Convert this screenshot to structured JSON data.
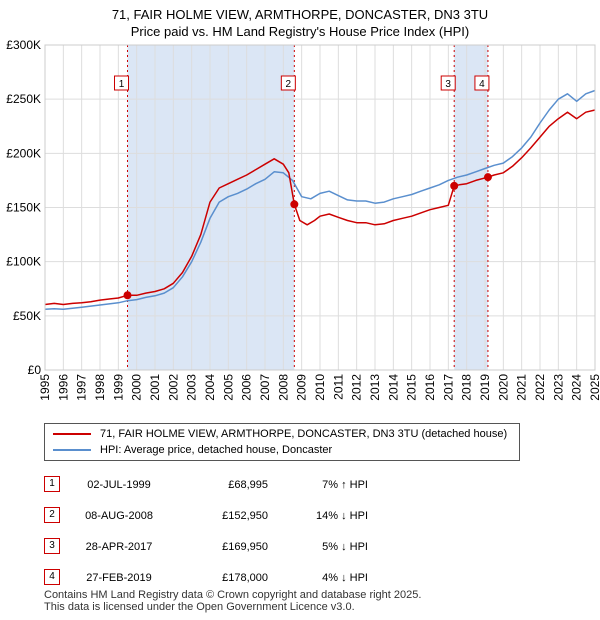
{
  "title_line1": "71, FAIR HOLME VIEW, ARMTHORPE, DONCASTER, DN3 3TU",
  "title_line2": "Price paid vs. HM Land Registry's House Price Index (HPI)",
  "colors": {
    "property": "#cc0000",
    "hpi": "#5a8fce",
    "highlight": "#dbe6f5",
    "grid": "#dddddd",
    "marker": "#cc0000"
  },
  "chart_data": {
    "type": "line",
    "title": "Price paid vs. HM Land Registry's House Price Index (HPI)",
    "xlabel": "",
    "ylabel": "",
    "xlim": [
      1995,
      2025
    ],
    "ylim": [
      0,
      300000
    ],
    "x_ticks": [
      1995,
      1996,
      1997,
      1998,
      1999,
      2000,
      2001,
      2002,
      2003,
      2004,
      2005,
      2006,
      2007,
      2008,
      2009,
      2010,
      2011,
      2012,
      2013,
      2014,
      2015,
      2016,
      2017,
      2018,
      2019,
      2020,
      2021,
      2022,
      2023,
      2024,
      2025
    ],
    "y_ticks": [
      0,
      50000,
      100000,
      150000,
      200000,
      250000,
      300000
    ],
    "y_tick_labels": [
      "£0",
      "£50K",
      "£100K",
      "£150K",
      "£200K",
      "£250K",
      "£300K"
    ],
    "series": [
      {
        "name": "71, FAIR HOLME VIEW, ARMTHORPE, DONCASTER, DN3 3TU (detached house)",
        "color": "#cc0000",
        "points": [
          [
            1995.0,
            60500
          ],
          [
            1995.5,
            61500
          ],
          [
            1996.0,
            60500
          ],
          [
            1996.5,
            61500
          ],
          [
            1997.0,
            62000
          ],
          [
            1997.5,
            63000
          ],
          [
            1998.0,
            64500
          ],
          [
            1998.5,
            65500
          ],
          [
            1999.0,
            66500
          ],
          [
            1999.5,
            68995
          ],
          [
            2000.0,
            69000
          ],
          [
            2000.5,
            71000
          ],
          [
            2001.0,
            72500
          ],
          [
            2001.5,
            75000
          ],
          [
            2002.0,
            80000
          ],
          [
            2002.5,
            90000
          ],
          [
            2003.0,
            105000
          ],
          [
            2003.5,
            125000
          ],
          [
            2004.0,
            155000
          ],
          [
            2004.5,
            168000
          ],
          [
            2005.0,
            172000
          ],
          [
            2005.5,
            176000
          ],
          [
            2006.0,
            180000
          ],
          [
            2006.5,
            185000
          ],
          [
            2007.0,
            190000
          ],
          [
            2007.5,
            195000
          ],
          [
            2008.0,
            190000
          ],
          [
            2008.3,
            182000
          ],
          [
            2008.6,
            152950
          ],
          [
            2008.9,
            138000
          ],
          [
            2009.3,
            134000
          ],
          [
            2009.7,
            138000
          ],
          [
            2010.0,
            142000
          ],
          [
            2010.5,
            144000
          ],
          [
            2011.0,
            141000
          ],
          [
            2011.5,
            138000
          ],
          [
            2012.0,
            136000
          ],
          [
            2012.5,
            136000
          ],
          [
            2013.0,
            134000
          ],
          [
            2013.5,
            135000
          ],
          [
            2014.0,
            138000
          ],
          [
            2014.5,
            140000
          ],
          [
            2015.0,
            142000
          ],
          [
            2015.5,
            145000
          ],
          [
            2016.0,
            148000
          ],
          [
            2016.5,
            150000
          ],
          [
            2017.0,
            152000
          ],
          [
            2017.32,
            169950
          ],
          [
            2017.6,
            171000
          ],
          [
            2018.0,
            172000
          ],
          [
            2018.5,
            175000
          ],
          [
            2019.16,
            178000
          ],
          [
            2019.5,
            180000
          ],
          [
            2020.0,
            182000
          ],
          [
            2020.5,
            188000
          ],
          [
            2021.0,
            196000
          ],
          [
            2021.5,
            205000
          ],
          [
            2022.0,
            215000
          ],
          [
            2022.5,
            225000
          ],
          [
            2023.0,
            232000
          ],
          [
            2023.5,
            238000
          ],
          [
            2024.0,
            232000
          ],
          [
            2024.5,
            238000
          ],
          [
            2025.0,
            240000
          ]
        ]
      },
      {
        "name": "HPI: Average price, detached house, Doncaster",
        "color": "#5a8fce",
        "points": [
          [
            1995.0,
            56000
          ],
          [
            1995.5,
            56500
          ],
          [
            1996.0,
            56000
          ],
          [
            1996.5,
            57000
          ],
          [
            1997.0,
            58000
          ],
          [
            1997.5,
            59000
          ],
          [
            1998.0,
            60000
          ],
          [
            1998.5,
            61000
          ],
          [
            1999.0,
            62000
          ],
          [
            1999.5,
            64000
          ],
          [
            2000.0,
            65000
          ],
          [
            2000.5,
            67000
          ],
          [
            2001.0,
            68500
          ],
          [
            2001.5,
            71000
          ],
          [
            2002.0,
            76000
          ],
          [
            2002.5,
            86000
          ],
          [
            2003.0,
            100000
          ],
          [
            2003.5,
            118000
          ],
          [
            2004.0,
            140000
          ],
          [
            2004.5,
            155000
          ],
          [
            2005.0,
            160000
          ],
          [
            2005.5,
            163000
          ],
          [
            2006.0,
            167000
          ],
          [
            2006.5,
            172000
          ],
          [
            2007.0,
            176000
          ],
          [
            2007.5,
            183000
          ],
          [
            2008.0,
            182000
          ],
          [
            2008.5,
            175000
          ],
          [
            2009.0,
            160000
          ],
          [
            2009.5,
            158000
          ],
          [
            2010.0,
            163000
          ],
          [
            2010.5,
            165000
          ],
          [
            2011.0,
            161000
          ],
          [
            2011.5,
            157000
          ],
          [
            2012.0,
            156000
          ],
          [
            2012.5,
            156000
          ],
          [
            2013.0,
            154000
          ],
          [
            2013.5,
            155000
          ],
          [
            2014.0,
            158000
          ],
          [
            2014.5,
            160000
          ],
          [
            2015.0,
            162000
          ],
          [
            2015.5,
            165000
          ],
          [
            2016.0,
            168000
          ],
          [
            2016.5,
            171000
          ],
          [
            2017.0,
            175000
          ],
          [
            2017.5,
            178000
          ],
          [
            2018.0,
            180000
          ],
          [
            2018.5,
            183000
          ],
          [
            2019.0,
            186000
          ],
          [
            2019.5,
            189000
          ],
          [
            2020.0,
            191000
          ],
          [
            2020.5,
            197000
          ],
          [
            2021.0,
            205000
          ],
          [
            2021.5,
            215000
          ],
          [
            2022.0,
            228000
          ],
          [
            2022.5,
            240000
          ],
          [
            2023.0,
            250000
          ],
          [
            2023.5,
            255000
          ],
          [
            2024.0,
            248000
          ],
          [
            2024.5,
            255000
          ],
          [
            2025.0,
            258000
          ]
        ]
      }
    ],
    "sales": [
      {
        "num": "1",
        "x": 1999.5,
        "price": 68995
      },
      {
        "num": "2",
        "x": 2008.6,
        "price": 152950
      },
      {
        "num": "3",
        "x": 2017.32,
        "price": 169950
      },
      {
        "num": "4",
        "x": 2019.16,
        "price": 178000
      }
    ],
    "highlight_spans": [
      [
        1999.5,
        2008.6
      ],
      [
        2017.32,
        2019.16
      ]
    ]
  },
  "legend": {
    "property_label": "71, FAIR HOLME VIEW, ARMTHORPE, DONCASTER, DN3 3TU (detached house)",
    "hpi_label": "HPI: Average price, detached house, Doncaster"
  },
  "sales_table": [
    {
      "num": "1",
      "date": "02-JUL-1999",
      "price": "£68,995",
      "hpi": "7% ↑ HPI"
    },
    {
      "num": "2",
      "date": "08-AUG-2008",
      "price": "£152,950",
      "hpi": "14% ↓ HPI"
    },
    {
      "num": "3",
      "date": "28-APR-2017",
      "price": "£169,950",
      "hpi": "5% ↓ HPI"
    },
    {
      "num": "4",
      "date": "27-FEB-2019",
      "price": "£178,000",
      "hpi": "4% ↓ HPI"
    }
  ],
  "footer_line1": "Contains HM Land Registry data © Crown copyright and database right 2025.",
  "footer_line2": "This data is licensed under the Open Government Licence v3.0."
}
